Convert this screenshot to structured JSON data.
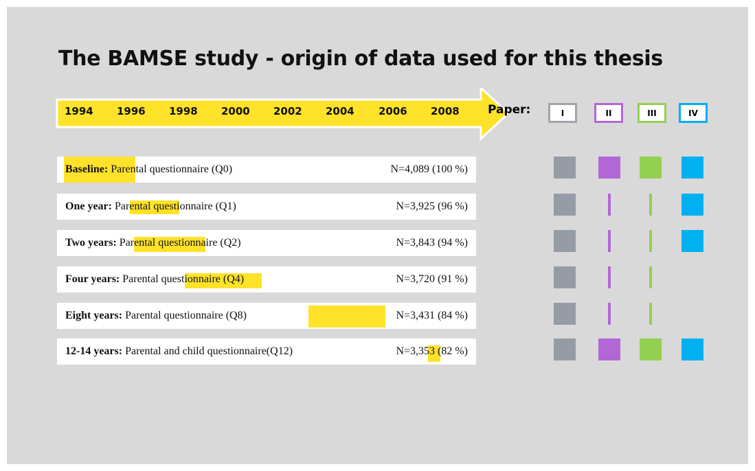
{
  "title": "The BAMSE study - origin of data used for this thesis",
  "timeline": {
    "years": [
      "1994",
      "1996",
      "1998",
      "2000",
      "2002",
      "2004",
      "2006",
      "2008"
    ]
  },
  "papers": {
    "label": "Paper:",
    "items": [
      "I",
      "II",
      "III",
      "IV"
    ]
  },
  "rows": [
    {
      "label": "Baseline:",
      "text": "Parental questionnaire (Q0)",
      "n": "N=4,089",
      "pct": "(100 %)"
    },
    {
      "label": "One year:",
      "text": "Parental questionnaire (Q1)",
      "n": "N=3,925",
      "pct": "(96 %)"
    },
    {
      "label": "Two years:",
      "text": "Parental questionnaire (Q2)",
      "n": "N=3,843",
      "pct": "(94 %)"
    },
    {
      "label": "Four years:",
      "text": "Parental questionnaire (Q4)",
      "n": "N=3,720",
      "pct": "(91 %)"
    },
    {
      "label": "Eight years:",
      "text": "Parental questionnaire (Q8)",
      "n": "N=3,431",
      "pct": "(84 %)"
    },
    {
      "label": "12-14 years:",
      "text": "Parental and child questionnaire(Q12)",
      "n": "N=3,353",
      "pct": "(82 %)"
    }
  ]
}
